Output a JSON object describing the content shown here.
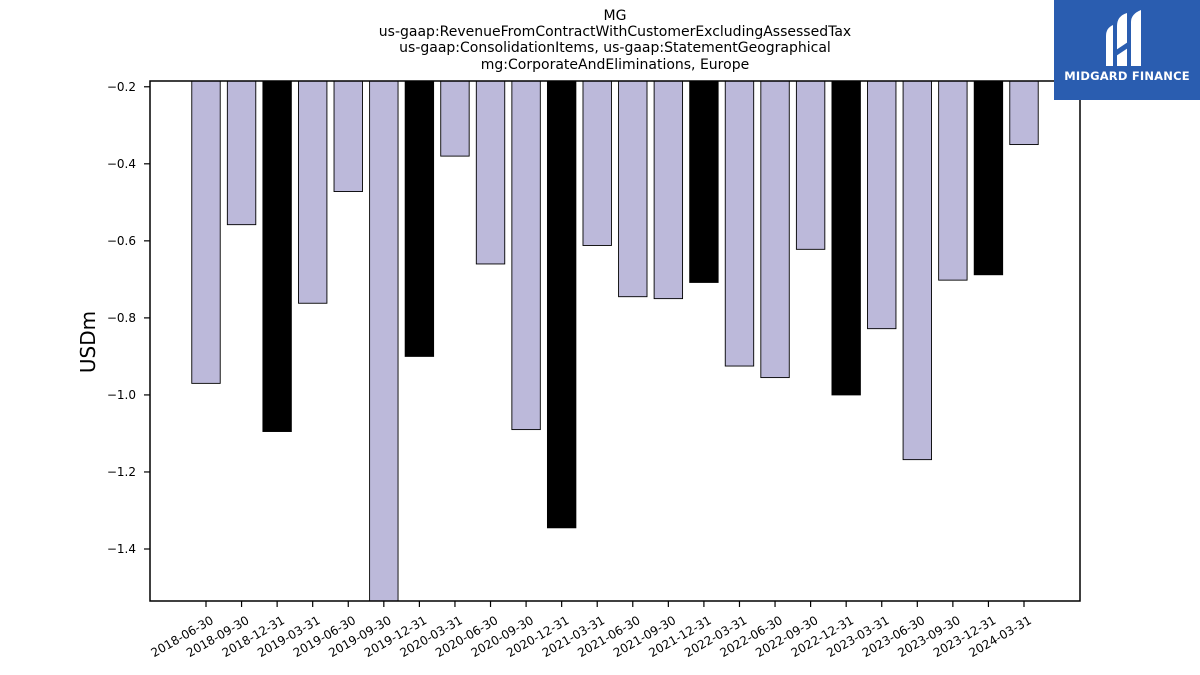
{
  "chart_data": {
    "type": "bar",
    "title_lines": [
      "MG",
      "us-gaap:RevenueFromContractWithCustomerExcludingAssessedTax",
      "us-gaap:ConsolidationItems, us-gaap:StatementGeographical",
      "mg:CorporateAndEliminations, Europe"
    ],
    "ylabel": "USDm",
    "xlabel": "",
    "ylim": [
      -1.535,
      -0.185
    ],
    "yticks": [
      -0.2,
      -0.4,
      -0.6,
      -0.8,
      -1.0,
      -1.2,
      -1.4
    ],
    "ytick_labels": [
      "−0.2",
      "−0.4",
      "−0.6",
      "−0.8",
      "−1.0",
      "−1.2",
      "−1.4"
    ],
    "categories": [
      "2018-06-30",
      "2018-09-30",
      "2018-12-31",
      "2019-03-31",
      "2019-06-30",
      "2019-09-30",
      "2019-12-31",
      "2020-03-31",
      "2020-06-30",
      "2020-09-30",
      "2020-12-31",
      "2021-03-31",
      "2021-06-30",
      "2021-09-30",
      "2021-12-31",
      "2022-03-31",
      "2022-06-30",
      "2022-09-30",
      "2022-12-31",
      "2023-03-31",
      "2023-06-30",
      "2023-09-30",
      "2023-12-31",
      "2024-03-31"
    ],
    "values": [
      -0.97,
      -0.558,
      -1.095,
      -0.762,
      -0.472,
      -1.55,
      -0.9,
      -0.38,
      -0.66,
      -1.09,
      -1.345,
      -0.612,
      -0.745,
      -0.75,
      -0.708,
      -0.925,
      -0.955,
      -0.622,
      -1.0,
      -0.828,
      -1.168,
      -0.702,
      -0.688,
      -0.35
    ],
    "bar_colors": [
      "#bcb9da",
      "#bcb9da",
      "#000000",
      "#bcb9da",
      "#bcb9da",
      "#bcb9da",
      "#000000",
      "#bcb9da",
      "#bcb9da",
      "#bcb9da",
      "#000000",
      "#bcb9da",
      "#bcb9da",
      "#bcb9da",
      "#000000",
      "#bcb9da",
      "#bcb9da",
      "#bcb9da",
      "#000000",
      "#bcb9da",
      "#bcb9da",
      "#bcb9da",
      "#000000",
      "#bcb9da"
    ],
    "grid": false,
    "legend": "none"
  },
  "logo": {
    "text": "MIDGARD FINANCE",
    "background": "#2a5db0"
  }
}
